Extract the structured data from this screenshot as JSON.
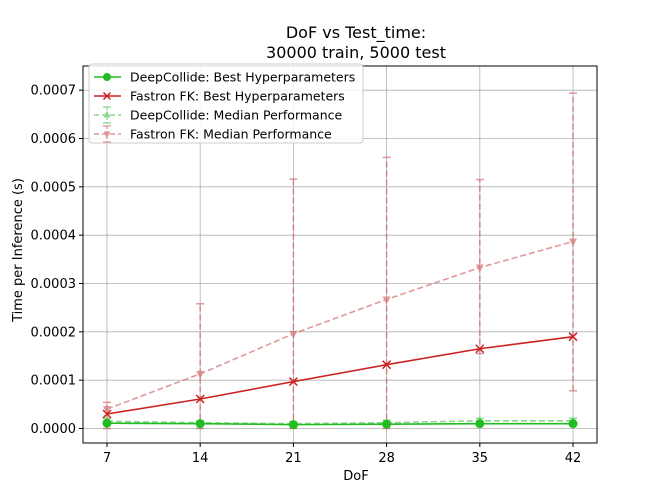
{
  "chart_data": {
    "type": "line",
    "title_line1": "DoF vs Test_time:",
    "title_line2": "30000 train, 5000 test",
    "xlabel": "DoF",
    "ylabel": "Time per Inference (s)",
    "x": [
      7,
      14,
      21,
      28,
      35,
      42
    ],
    "x_ticks": [
      "7",
      "14",
      "21",
      "28",
      "35",
      "42"
    ],
    "y_ticks": [
      "0.0000",
      "0.0001",
      "0.0002",
      "0.0003",
      "0.0004",
      "0.0005",
      "0.0006",
      "0.0007"
    ],
    "y_tick_values": [
      0,
      0.0001,
      0.0002,
      0.0003,
      0.0004,
      0.0005,
      0.0006,
      0.0007
    ],
    "xlim": [
      5.2,
      43.8
    ],
    "ylim": [
      -3e-05,
      0.00075
    ],
    "grid": true,
    "legend_position": "top-left",
    "series": [
      {
        "name": "DeepCollide: Best Hyperparameters",
        "values": [
          1.1e-05,
          1e-05,
          8e-06,
          9e-06,
          1e-05,
          1e-05
        ],
        "color": "#22bb22",
        "marker": "circle",
        "dashed": false,
        "alpha": 1
      },
      {
        "name": "Fastron FK: Best Hyperparameters",
        "values": [
          3e-05,
          6.1e-05,
          9.7e-05,
          0.000132,
          0.000165,
          0.00019
        ],
        "color": "#cc2222",
        "marker": "x",
        "dashed": false,
        "alpha": 1
      },
      {
        "name": "DeepCollide: Median Performance",
        "values": [
          1.5e-05,
          1.2e-05,
          1e-05,
          1.2e-05,
          1.6e-05,
          1.6e-05
        ],
        "err_low": [
          6e-06,
          4e-06,
          4e-06,
          5e-06,
          5e-06,
          5e-06
        ],
        "err_high": [
          6e-06,
          4e-06,
          4e-06,
          5e-06,
          5e-06,
          5e-06
        ],
        "color": "#66cc66",
        "marker": "triangle-up",
        "dashed": true,
        "alpha": 0.75
      },
      {
        "name": "Fastron FK: Median Performance",
        "values": [
          4e-05,
          0.000113,
          0.000196,
          0.000267,
          0.000333,
          0.000387
        ],
        "err_low": [
          4e-05,
          0.000113,
          0.000196,
          0.000267,
          0.000178,
          0.000309
        ],
        "err_high": [
          1.4e-05,
          0.000145,
          0.00032,
          0.000294,
          0.000182,
          0.000307
        ],
        "color": "#cc5555",
        "marker": "triangle-down",
        "dashed": true,
        "alpha": 0.6
      }
    ]
  }
}
